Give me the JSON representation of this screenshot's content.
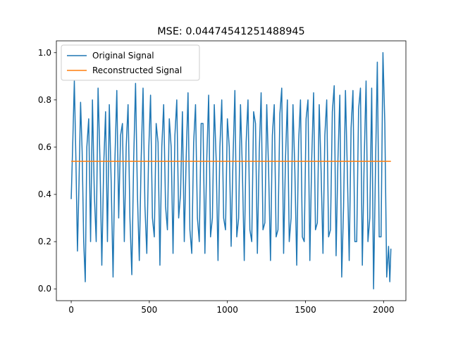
{
  "chart_data": {
    "type": "line",
    "title": "MSE: 0.04474541251488945",
    "xlabel": "",
    "ylabel": "",
    "xlim": [
      -95,
      2143
    ],
    "ylim": [
      -0.05,
      1.05
    ],
    "x_ticks": [
      0,
      500,
      1000,
      1500,
      2000
    ],
    "x_tick_labels": [
      "0",
      "500",
      "1000",
      "1500",
      "2000"
    ],
    "y_ticks": [
      0.0,
      0.2,
      0.4,
      0.6,
      0.8,
      1.0
    ],
    "y_tick_labels": [
      "0.0",
      "0.2",
      "0.4",
      "0.6",
      "0.8",
      "1.0"
    ],
    "grid": false,
    "legend_position": "upper-left",
    "series": [
      {
        "name": "Original Signal",
        "color": "#1f77b4",
        "x": [
          0,
          10,
          20,
          30,
          40,
          50,
          60,
          70,
          80,
          90,
          100,
          112,
          124,
          136,
          148,
          160,
          172,
          184,
          196,
          208,
          220,
          232,
          244,
          256,
          268,
          280,
          292,
          304,
          316,
          328,
          340,
          352,
          364,
          376,
          388,
          400,
          412,
          424,
          436,
          448,
          460,
          472,
          484,
          496,
          508,
          520,
          532,
          544,
          556,
          568,
          580,
          592,
          604,
          616,
          628,
          640,
          652,
          664,
          676,
          688,
          700,
          712,
          724,
          736,
          748,
          760,
          772,
          784,
          796,
          808,
          820,
          832,
          844,
          856,
          868,
          880,
          892,
          904,
          916,
          928,
          940,
          952,
          964,
          976,
          988,
          1000,
          1012,
          1024,
          1036,
          1048,
          1060,
          1072,
          1084,
          1096,
          1108,
          1120,
          1132,
          1144,
          1156,
          1168,
          1180,
          1192,
          1204,
          1216,
          1228,
          1240,
          1252,
          1264,
          1276,
          1288,
          1300,
          1312,
          1324,
          1336,
          1348,
          1360,
          1372,
          1384,
          1396,
          1408,
          1420,
          1432,
          1444,
          1456,
          1468,
          1480,
          1492,
          1504,
          1516,
          1528,
          1540,
          1552,
          1564,
          1576,
          1588,
          1600,
          1612,
          1624,
          1636,
          1648,
          1660,
          1672,
          1684,
          1696,
          1708,
          1720,
          1732,
          1744,
          1756,
          1768,
          1780,
          1792,
          1804,
          1816,
          1828,
          1840,
          1852,
          1864,
          1876,
          1888,
          1900,
          1912,
          1924,
          1936,
          1948,
          1960,
          1972,
          1984,
          1996,
          2008,
          2020,
          2032,
          2040,
          2047
        ],
        "y": [
          0.38,
          0.62,
          0.88,
          0.55,
          0.16,
          0.45,
          0.79,
          0.58,
          0.2,
          0.03,
          0.6,
          0.72,
          0.2,
          0.8,
          0.4,
          0.2,
          0.85,
          0.55,
          0.1,
          0.52,
          0.75,
          0.2,
          0.78,
          0.45,
          0.05,
          0.55,
          0.84,
          0.3,
          0.65,
          0.7,
          0.2,
          0.6,
          0.78,
          0.3,
          0.06,
          0.55,
          0.87,
          0.4,
          0.12,
          0.55,
          0.85,
          0.35,
          0.15,
          0.58,
          0.82,
          0.3,
          0.22,
          0.7,
          0.62,
          0.1,
          0.6,
          0.78,
          0.35,
          0.25,
          0.72,
          0.6,
          0.15,
          0.65,
          0.8,
          0.3,
          0.4,
          0.75,
          0.2,
          0.55,
          0.83,
          0.25,
          0.15,
          0.62,
          0.78,
          0.3,
          0.2,
          0.7,
          0.7,
          0.15,
          0.55,
          0.82,
          0.22,
          0.3,
          0.78,
          0.55,
          0.12,
          0.6,
          0.8,
          0.3,
          0.25,
          0.72,
          0.6,
          0.18,
          0.55,
          0.84,
          0.22,
          0.3,
          0.78,
          0.5,
          0.12,
          0.62,
          0.8,
          0.25,
          0.2,
          0.75,
          0.7,
          0.15,
          0.58,
          0.83,
          0.25,
          0.28,
          0.78,
          0.5,
          0.12,
          0.65,
          0.78,
          0.22,
          0.25,
          0.74,
          0.85,
          0.15,
          0.55,
          0.8,
          0.2,
          0.3,
          0.78,
          0.5,
          0.1,
          0.62,
          0.8,
          0.22,
          0.2,
          0.72,
          0.8,
          0.12,
          0.55,
          0.83,
          0.25,
          0.28,
          0.78,
          0.5,
          0.15,
          0.65,
          0.8,
          0.22,
          0.25,
          0.75,
          0.86,
          0.14,
          0.55,
          0.82,
          0.05,
          0.35,
          0.84,
          0.5,
          0.12,
          0.68,
          0.84,
          0.2,
          0.2,
          0.76,
          0.85,
          0.1,
          0.55,
          0.88,
          0.2,
          0.3,
          0.85,
          0.0,
          0.5,
          0.96,
          0.22,
          0.22,
          1.0,
          0.7,
          0.05,
          0.18,
          0.03,
          0.17
        ]
      },
      {
        "name": "Reconstructed Signal",
        "color": "#ff7f0e",
        "x": [
          0,
          2047
        ],
        "y": [
          0.54,
          0.54
        ]
      }
    ]
  }
}
